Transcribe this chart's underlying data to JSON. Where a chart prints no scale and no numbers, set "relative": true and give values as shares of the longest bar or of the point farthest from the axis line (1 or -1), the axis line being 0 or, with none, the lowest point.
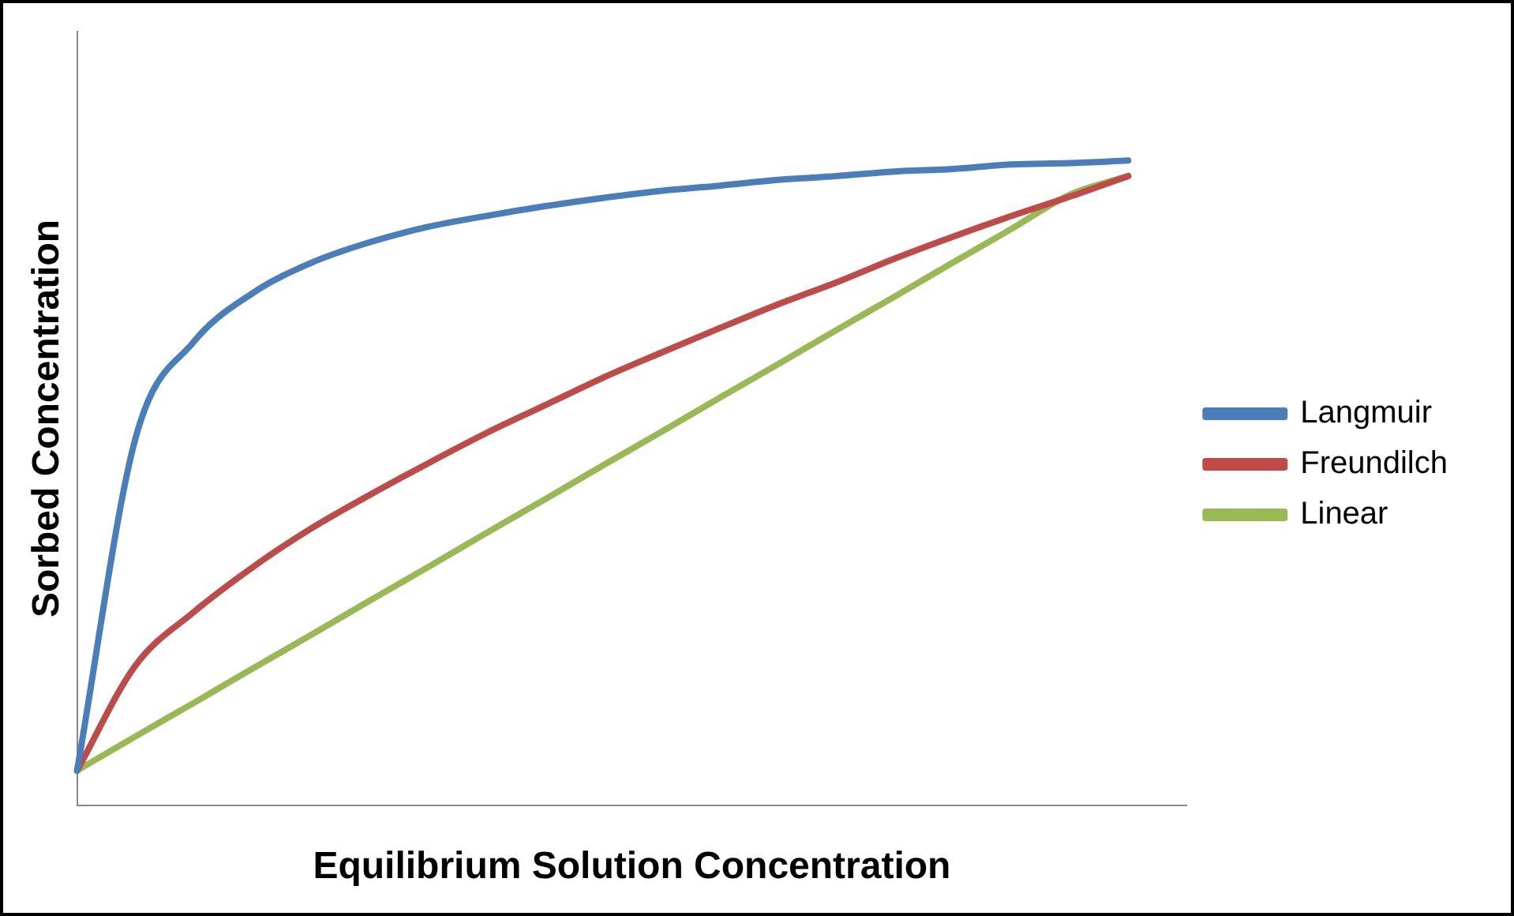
{
  "chart_data": {
    "type": "line",
    "xlabel": "Equilibrium Solution Concentration",
    "ylabel": "Sorbed Concentration",
    "relative": true,
    "legend": "right",
    "grid": false,
    "marker": "none",
    "line_style": "solid",
    "categories": [
      null,
      null,
      null,
      null,
      null,
      null,
      null,
      null,
      null,
      null,
      null,
      null,
      null,
      null,
      null,
      null,
      null,
      null,
      null,
      null
    ],
    "series": [
      {
        "name": "Langmuir",
        "color": "#4a7ebb",
        "values": [
          0.054,
          0.569,
          0.719,
          0.794,
          0.841,
          0.873,
          0.897,
          0.914,
          0.929,
          0.942,
          0.953,
          0.961,
          0.97,
          0.976,
          0.983,
          0.987,
          0.994,
          0.996,
          1,
          null
        ]
      },
      {
        "name": "Freundilch",
        "color": "#be4b48",
        "values": [
          0.054,
          0.217,
          0.3,
          0.369,
          0.429,
          0.481,
          0.53,
          0.577,
          0.62,
          0.663,
          0.702,
          0.74,
          0.777,
          0.811,
          0.848,
          0.882,
          0.914,
          0.944,
          0.976,
          null
        ]
      },
      {
        "name": "Linear",
        "color": "#98b954",
        "values": [
          0.054,
          0.107,
          0.159,
          0.212,
          0.264,
          0.317,
          0.369,
          0.422,
          0.474,
          0.527,
          0.579,
          0.632,
          0.684,
          0.737,
          0.789,
          0.842,
          0.894,
          0.947,
          0.976,
          null
        ]
      }
    ]
  }
}
